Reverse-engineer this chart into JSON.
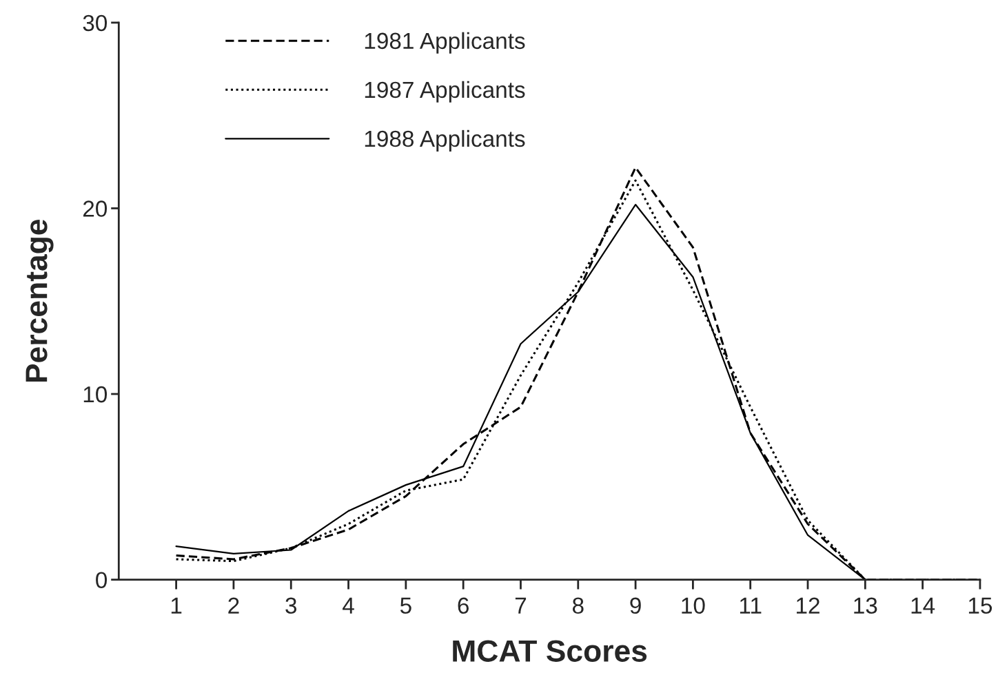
{
  "chart_data": {
    "type": "line",
    "xlabel": "MCAT Scores",
    "ylabel": "Percentage",
    "x": [
      1,
      2,
      3,
      4,
      5,
      6,
      7,
      8,
      9,
      10,
      11,
      12,
      13,
      14,
      15
    ],
    "xlim": [
      0,
      15
    ],
    "xticks": [
      1,
      2,
      3,
      4,
      5,
      6,
      7,
      8,
      9,
      10,
      11,
      12,
      13,
      14,
      15
    ],
    "ylim": [
      0,
      30
    ],
    "yticks": [
      0,
      10,
      20,
      30
    ],
    "grid": false,
    "legend": "top left",
    "marker": "none",
    "series": [
      {
        "name": "1981 Applicants",
        "color": "#000000",
        "line_style": "dashed",
        "values": [
          1.3,
          1.1,
          1.7,
          2.7,
          4.5,
          7.3,
          9.3,
          15.5,
          22.2,
          17.9,
          7.9,
          3.0,
          0,
          0,
          0
        ]
      },
      {
        "name": "1987 Applicants",
        "color": "#000000",
        "line_style": "dotted",
        "values": [
          1.1,
          1.0,
          1.7,
          3.0,
          4.8,
          5.4,
          11.0,
          16.0,
          21.5,
          15.6,
          9.3,
          3.2,
          0,
          0,
          0
        ]
      },
      {
        "name": "1988 Applicants",
        "color": "#000000",
        "line_style": "solid",
        "values": [
          1.8,
          1.4,
          1.6,
          3.7,
          5.1,
          6.1,
          12.7,
          15.5,
          20.2,
          16.3,
          7.9,
          2.4,
          0,
          null,
          null
        ]
      }
    ]
  }
}
